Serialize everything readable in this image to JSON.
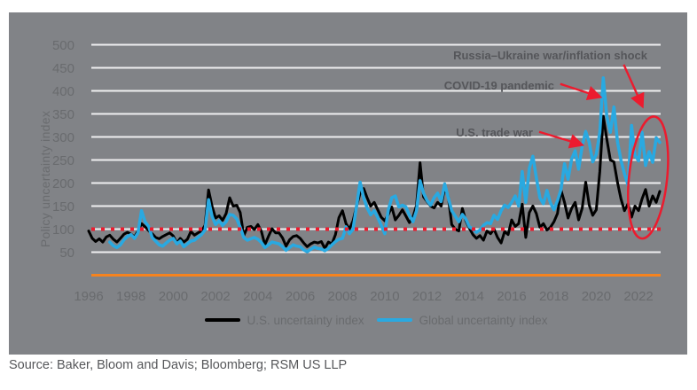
{
  "figure": {
    "source": "Source: Baker, Bloom and Davis; Bloomberg; RSM US LLP"
  },
  "colors": {
    "panel_background": "#818387",
    "gridline": "#EFEFF0",
    "axis_baseline_orange": "#F5831F",
    "reference_red": "#EC1B2E",
    "us_series": "#000000",
    "global_series": "#29A9E1",
    "tick_text": "#696B6E",
    "annotation_text": "#55565A"
  },
  "chart_data": {
    "type": "line",
    "title": "",
    "xlabel": "",
    "ylabel": "Policy uncertainty index",
    "ylim": [
      0,
      500
    ],
    "grid": true,
    "legend_position": "bottom",
    "y_ticks": [
      50,
      100,
      150,
      200,
      250,
      300,
      350,
      400,
      450,
      500
    ],
    "x_ticks": [
      "1996",
      "1998",
      "2000",
      "2002",
      "2004",
      "2006",
      "2008",
      "2010",
      "2012",
      "2014",
      "2016",
      "2018",
      "2020",
      "2022"
    ],
    "x_tick_years": [
      1996,
      1998,
      2000,
      2002,
      2004,
      2006,
      2008,
      2010,
      2012,
      2014,
      2016,
      2018,
      2020,
      2022
    ],
    "reference_line": {
      "value": 100,
      "style": "dotted",
      "color": "#EC1B2E"
    },
    "annotations": [
      {
        "text": "Russia–Ukraine war/inflation shock",
        "arrow_from_year": 2021.3,
        "arrow_from_value": 457,
        "arrow_to_year": 2022.15,
        "arrow_to_value": 370
      },
      {
        "text": "COVID-19 pandemic",
        "arrow_from_year": 2018.3,
        "arrow_from_value": 415,
        "arrow_to_year": 2020.1,
        "arrow_to_value": 388
      },
      {
        "text": "U.S. trade war",
        "arrow_from_year": 2017.3,
        "arrow_from_value": 311,
        "arrow_to_year": 2019.25,
        "arrow_to_value": 284
      }
    ],
    "highlight_ellipse": {
      "center_year": 2022.45,
      "center_value": 212,
      "radius_years": 0.9,
      "radius_value": 133,
      "rotation_deg": 6
    },
    "series": [
      {
        "name": "U.S. uncertainty index",
        "color": "#000000",
        "start_year": 1996,
        "points_per_year": 6,
        "values": [
          96,
          80,
          73,
          79,
          72,
          83,
          87,
          78,
          72,
          80,
          89,
          93,
          89,
          83,
          96,
          112,
          105,
          97,
          90,
          82,
          79,
          84,
          88,
          92,
          85,
          70,
          80,
          72,
          78,
          95,
          87,
          92,
          96,
          108,
          185,
          150,
          124,
          129,
          119,
          134,
          168,
          150,
          152,
          136,
          86,
          104,
          106,
          99,
          110,
          95,
          66,
          84,
          101,
          92,
          92,
          81,
          63,
          77,
          84,
          86,
          80,
          70,
          62,
          68,
          72,
          70,
          73,
          58,
          72,
          68,
          88,
          125,
          140,
          112,
          100,
          118,
          150,
          178,
          188,
          168,
          150,
          158,
          142,
          126,
          118,
          132,
          148,
          120,
          130,
          142,
          128,
          114,
          126,
          152,
          244,
          170,
          160,
          150,
          146,
          158,
          150,
          190,
          170,
          110,
          100,
          96,
          145,
          118,
          102,
          88,
          80,
          86,
          76,
          96,
          90,
          100,
          82,
          70,
          95,
          88,
          120,
          106,
          112,
          154,
          82,
          136,
          150,
          134,
          104,
          112,
          98,
          104,
          116,
          134,
          185,
          158,
          124,
          145,
          158,
          120,
          145,
          202,
          152,
          130,
          142,
          225,
          345,
          295,
          250,
          246,
          202,
          166,
          140,
          155,
          126,
          150,
          140,
          166,
          186,
          150,
          172,
          158,
          182
        ]
      },
      {
        "name": "Global uncertainty index",
        "color": "#29A9E1",
        "start_year": 1997,
        "points_per_year": 6,
        "values": [
          72,
          64,
          60,
          66,
          77,
          84,
          88,
          80,
          92,
          140,
          116,
          106,
          82,
          74,
          66,
          63,
          70,
          76,
          80,
          68,
          74,
          62,
          68,
          74,
          76,
          82,
          88,
          98,
          164,
          128,
          110,
          118,
          108,
          116,
          132,
          130,
          122,
          104,
          82,
          76,
          79,
          82,
          78,
          71,
          60,
          66,
          72,
          70,
          68,
          62,
          54,
          60,
          66,
          63,
          62,
          55,
          51,
          56,
          61,
          58,
          57,
          53,
          58,
          66,
          73,
          78,
          80,
          105,
          90,
          100,
          150,
          202,
          168,
          146,
          131,
          140,
          125,
          108,
          90,
          142,
          168,
          172,
          148,
          152,
          148,
          130,
          116,
          140,
          205,
          178,
          162,
          152,
          168,
          178,
          160,
          198,
          168,
          140,
          128,
          116,
          132,
          122,
          105,
          100,
          93,
          98,
          108,
          114,
          112,
          130,
          121,
          140,
          152,
          147,
          158,
          172,
          150,
          225,
          158,
          232,
          258,
          212,
          168,
          155,
          184,
          157,
          142,
          162,
          186,
          242,
          208,
          252,
          270,
          230,
          280,
          312,
          288,
          246,
          262,
          310,
          428,
          345,
          310,
          365,
          290,
          250,
          220,
          196,
          325,
          260,
          248,
          310,
          238,
          268,
          245,
          298,
          288
        ]
      }
    ]
  }
}
